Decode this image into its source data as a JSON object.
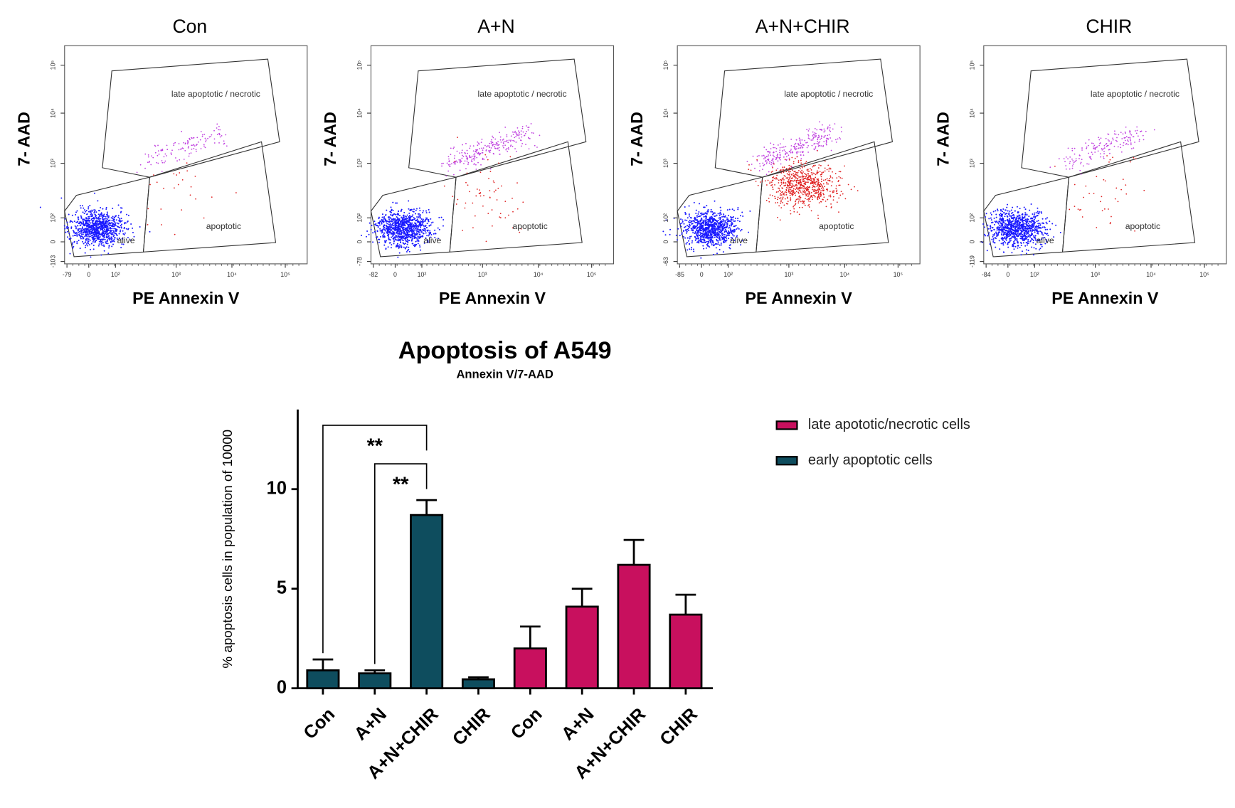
{
  "flow_panels": [
    {
      "title": "Con",
      "x_label": "PE Annexin V",
      "y_label": "7- AAD",
      "gates": [
        "late apoptotic / necrotic",
        "apoptotic",
        "alive"
      ],
      "xticks": [
        "-79",
        "0",
        "10²",
        "10³",
        "10⁴",
        "10⁵"
      ],
      "yticks": [
        "-103",
        "0",
        "10²",
        "10³",
        "10⁴",
        "10⁵"
      ]
    },
    {
      "title": "A+N",
      "x_label": "PE Annexin V",
      "y_label": "7- AAD",
      "gates": [
        "late apoptotic / necrotic",
        "apoptotic",
        "alive"
      ],
      "xticks": [
        "-82",
        "0",
        "10²",
        "10³",
        "10⁴",
        "10⁵"
      ],
      "yticks": [
        "-78",
        "0",
        "10²",
        "10³",
        "10⁴",
        "10⁵"
      ]
    },
    {
      "title": "A+N+CHIR",
      "x_label": "PE Annexin V",
      "y_label": "7- AAD",
      "gates": [
        "late apoptotic / necrotic",
        "apoptotic",
        "alive"
      ],
      "xticks": [
        "-85",
        "0",
        "10²",
        "10³",
        "10⁴",
        "10⁵"
      ],
      "yticks": [
        "-63",
        "0",
        "10²",
        "10³",
        "10⁴",
        "10⁵"
      ]
    },
    {
      "title": "CHIR",
      "x_label": "PE Annexin V",
      "y_label": "7- AAD",
      "gates": [
        "late apoptotic / necrotic",
        "apoptotic",
        "alive"
      ],
      "xticks": [
        "-84",
        "0",
        "10²",
        "10³",
        "10⁴",
        "10⁵"
      ],
      "yticks": [
        "-119",
        "0",
        "10²",
        "10³",
        "10⁴",
        "10⁵"
      ]
    }
  ],
  "chart_data": {
    "type": "bar",
    "title": "Apoptosis of A549",
    "subtitle": "Annexin V/7-AAD",
    "y_label": "% apoptosis cells in population of  10000",
    "categories": [
      "Con",
      "A+N",
      "A+N+CHIR",
      "CHIR",
      "Con",
      "A+N",
      "A+N+CHIR",
      "CHIR"
    ],
    "series": [
      {
        "name": "late apototic/necrotic cells",
        "color": "#c8105e",
        "values": [
          null,
          null,
          null,
          null,
          2.0,
          4.1,
          6.2,
          3.7
        ],
        "errors": [
          null,
          null,
          null,
          null,
          1.1,
          0.9,
          1.25,
          1.0
        ]
      },
      {
        "name": "early apoptotic cells",
        "color": "#0e4d5e",
        "values": [
          0.9,
          0.75,
          8.7,
          0.45,
          null,
          null,
          null,
          null
        ],
        "errors": [
          0.55,
          0.15,
          0.75,
          0.1,
          null,
          null,
          null,
          null
        ]
      }
    ],
    "ylim": [
      0,
      14
    ],
    "yticks": [
      0,
      5,
      10
    ],
    "annotations": [
      {
        "label": "**",
        "categories": [
          0,
          2
        ]
      },
      {
        "label": "**",
        "categories": [
          1,
          2
        ]
      }
    ]
  }
}
